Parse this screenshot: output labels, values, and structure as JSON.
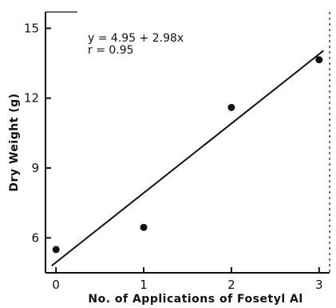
{
  "chart_data": {
    "type": "scatter",
    "xlabel": "No. of Applications of Fosetyl Al",
    "ylabel": "Dry Weight (g)",
    "x_ticks": [
      0,
      1,
      2,
      3
    ],
    "y_ticks": [
      6,
      9,
      12,
      15
    ],
    "xlim": [
      -0.12,
      3.12
    ],
    "ylim": [
      4.5,
      15.7
    ],
    "grid": false,
    "points": [
      {
        "x": 0,
        "y": 5.5
      },
      {
        "x": 1,
        "y": 6.45
      },
      {
        "x": 2,
        "y": 11.6
      },
      {
        "x": 3,
        "y": 13.65
      }
    ],
    "fit": {
      "intercept": 4.95,
      "slope": 2.98,
      "x_range": [
        -0.05,
        3.05
      ]
    },
    "annotations": [
      "y = 4.95 + 2.98x",
      "r = 0.95"
    ],
    "colors": {
      "ink": "#111111",
      "background": "#ffffff"
    }
  }
}
